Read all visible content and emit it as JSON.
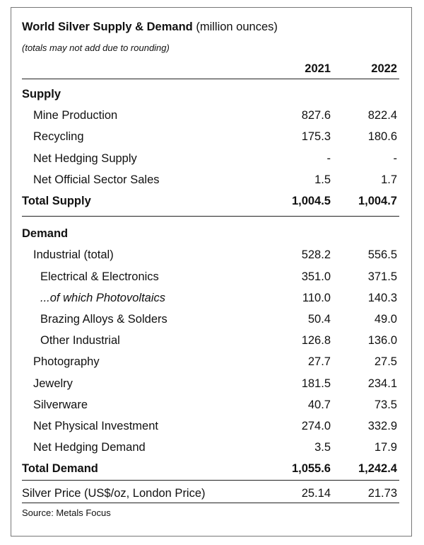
{
  "title": {
    "main": "World Silver Supply & Demand",
    "unit": "(million ounces)"
  },
  "note": "(totals may not add due to rounding)",
  "columns": [
    "2021",
    "2022"
  ],
  "rows": [
    {
      "label": "Supply",
      "style": "section"
    },
    {
      "label": "Mine Production",
      "values": [
        "827.6",
        "822.4"
      ],
      "indent": 1
    },
    {
      "label": "Recycling",
      "values": [
        "175.3",
        "180.6"
      ],
      "indent": 1
    },
    {
      "label": "Net Hedging Supply",
      "values": [
        "-",
        "-"
      ],
      "indent": 1
    },
    {
      "label": "Net Official Sector Sales",
      "values": [
        "1.5",
        "1.7"
      ],
      "indent": 1
    },
    {
      "label": "Total Supply",
      "values": [
        "1,004.5",
        "1,004.7"
      ],
      "style": "total"
    },
    {
      "label": "Demand",
      "style": "section"
    },
    {
      "label": "Industrial (total)",
      "values": [
        "528.2",
        "556.5"
      ],
      "indent": 1
    },
    {
      "label": "Electrical & Electronics",
      "values": [
        "351.0",
        "371.5"
      ],
      "indent": 2
    },
    {
      "label": "...of which Photovoltaics",
      "values": [
        "110.0",
        "140.3"
      ],
      "indent": 2,
      "italic": true
    },
    {
      "label": "Brazing Alloys & Solders",
      "values": [
        "50.4",
        "49.0"
      ],
      "indent": 2
    },
    {
      "label": "Other Industrial",
      "values": [
        "126.8",
        "136.0"
      ],
      "indent": 2
    },
    {
      "label": "Photography",
      "values": [
        "27.7",
        "27.5"
      ],
      "indent": 1
    },
    {
      "label": "Jewelry",
      "values": [
        "181.5",
        "234.1"
      ],
      "indent": 1
    },
    {
      "label": "Silverware",
      "values": [
        "40.7",
        "73.5"
      ],
      "indent": 1
    },
    {
      "label": "Net Physical Investment",
      "values": [
        "274.0",
        "332.9"
      ],
      "indent": 1
    },
    {
      "label": "Net Hedging Demand",
      "values": [
        "3.5",
        "17.9"
      ],
      "indent": 1
    },
    {
      "label": "Total Demand",
      "values": [
        "1,055.6",
        "1,242.4"
      ],
      "style": "total"
    },
    {
      "label": "Silver Price (US$/oz, London Price)",
      "values": [
        "25.14",
        "21.73"
      ],
      "style": "price"
    }
  ],
  "source": "Source: Metals Focus"
}
